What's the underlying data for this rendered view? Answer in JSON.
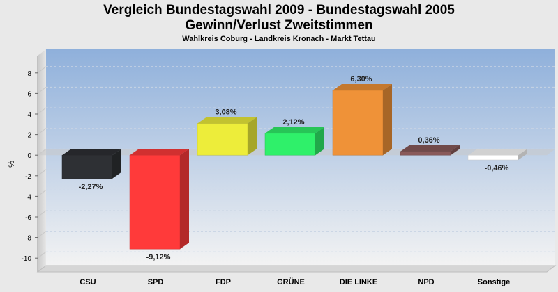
{
  "title": "Vergleich Bundestagswahl 2009 - Bundestagswahl 2005",
  "subtitle": "Gewinn/Verlust Zweitstimmen",
  "subsubtitle": "Wahlkreis Coburg - Landkreis Kronach - Markt Tettau",
  "chart_data": {
    "type": "bar",
    "categories": [
      "CSU",
      "SPD",
      "FDP",
      "GRÜNE",
      "DIE LINKE",
      "NPD",
      "Sonstige"
    ],
    "values": [
      -2.27,
      -9.12,
      3.08,
      2.12,
      6.3,
      0.36,
      -0.46
    ],
    "data_labels": [
      "-2,27%",
      "-9,12%",
      "3,08%",
      "2,12%",
      "6,30%",
      "0,36%",
      "-0,46%"
    ],
    "colors": [
      "#2e3034",
      "#ff3a3a",
      "#eded3a",
      "#2ff06a",
      "#ef9238",
      "#8a5a5a",
      "#ffffff"
    ],
    "ylabel": "%",
    "ylim": [
      -11,
      9
    ],
    "yticks": [
      8,
      6,
      4,
      2,
      0,
      -2,
      -4,
      -6,
      -8,
      -10
    ],
    "ytick_labels": [
      "8",
      "6",
      "4",
      "2",
      "0",
      "-2",
      "-4",
      "-6",
      "-8",
      "-10"
    ],
    "grid": true,
    "legend": "none"
  }
}
